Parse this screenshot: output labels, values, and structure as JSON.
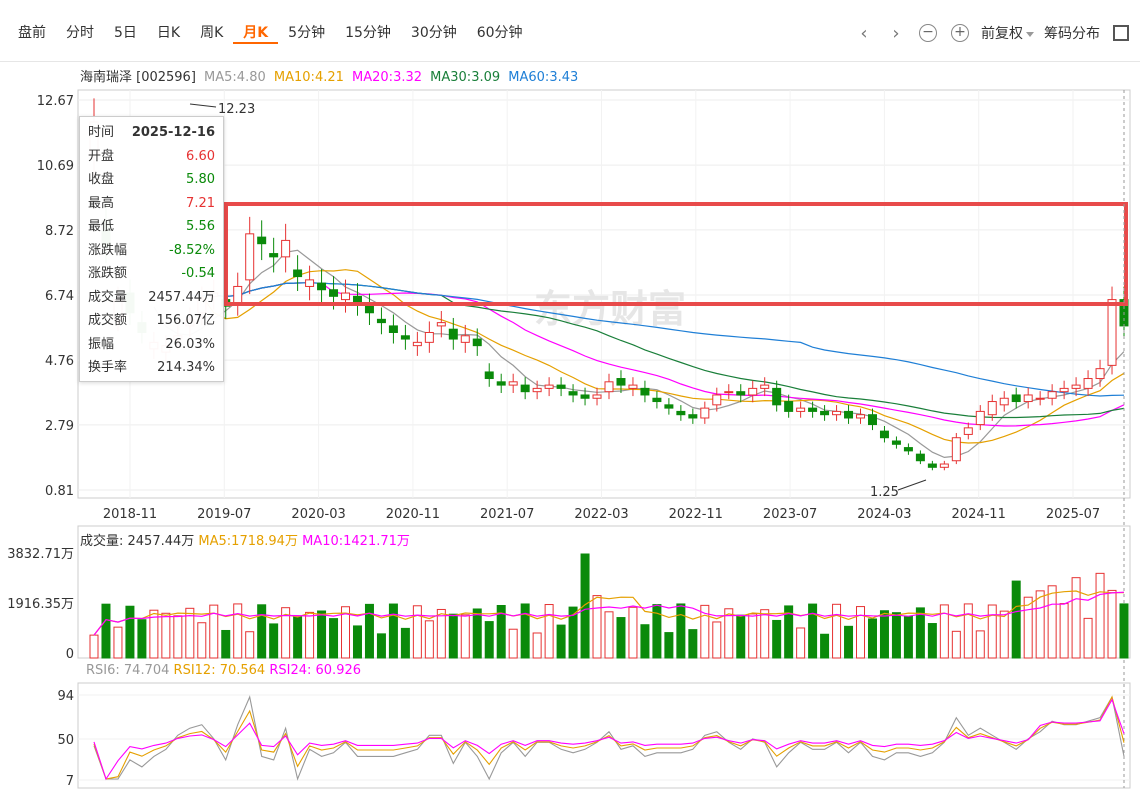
{
  "toolbar": {
    "tabs": [
      {
        "label": "盘前"
      },
      {
        "label": "分时"
      },
      {
        "label": "5日"
      },
      {
        "label": "日K"
      },
      {
        "label": "周K"
      },
      {
        "label": "月K"
      },
      {
        "label": "5分钟"
      },
      {
        "label": "15分钟"
      },
      {
        "label": "30分钟"
      },
      {
        "label": "60分钟"
      }
    ],
    "active_tab": "月K",
    "icons": [
      "chevron-left-icon",
      "chevron-right-icon",
      "zoom-out-icon",
      "zoom-in-icon",
      "fullscreen-icon"
    ],
    "adjust_label": "前复权",
    "chip_label": "筹码分布"
  },
  "stock": {
    "title": "海南瑞泽 [002596]",
    "ma": [
      {
        "label": "MA5:4.80",
        "color": "#999999"
      },
      {
        "label": "MA10:4.21",
        "color": "#e5a000"
      },
      {
        "label": "MA20:3.32",
        "color": "#ff00ff"
      },
      {
        "label": "MA30:3.09",
        "color": "#1a7f3a"
      },
      {
        "label": "MA60:3.43",
        "color": "#1f7fd6"
      }
    ]
  },
  "tooltip": {
    "rows": [
      {
        "k": "时间",
        "v": "2025-12-16",
        "cls": "bold"
      },
      {
        "k": "开盘",
        "v": "6.60",
        "cls": "red"
      },
      {
        "k": "收盘",
        "v": "5.80",
        "cls": "green"
      },
      {
        "k": "最高",
        "v": "7.21",
        "cls": "red"
      },
      {
        "k": "最低",
        "v": "5.56",
        "cls": "green"
      },
      {
        "k": "涨跌幅",
        "v": "-8.52%",
        "cls": "green"
      },
      {
        "k": "涨跌额",
        "v": "-0.54",
        "cls": "green"
      },
      {
        "k": "成交量",
        "v": "2457.44万",
        "cls": ""
      },
      {
        "k": "成交额",
        "v": "156.07亿",
        "cls": ""
      },
      {
        "k": "振幅",
        "v": "26.03%",
        "cls": ""
      },
      {
        "k": "换手率",
        "v": "214.34%",
        "cls": ""
      }
    ]
  },
  "volume_legend": {
    "main": "成交量: 2457.44万",
    "ma5": "MA5:1718.94万",
    "ma10": "MA10:1421.71万"
  },
  "rsi_legend": {
    "rsi6": "RSI6: 74.704",
    "rsi12": "RSI12: 70.564",
    "rsi24": "RSI24: 60.926"
  },
  "watermark": "东方财富",
  "colors": {
    "up": "#e63232",
    "down": "#0a8a0a",
    "highlight_box": "#e84a4a"
  },
  "chart_data": {
    "type": "candlestick",
    "price_axis": {
      "ticks": [
        "12.67",
        "10.69",
        "8.72",
        "6.74",
        "4.76",
        "2.79",
        "0.81"
      ],
      "range": [
        0.81,
        12.67
      ]
    },
    "x_labels": [
      "2018-11",
      "2019-07",
      "2020-03",
      "2020-11",
      "2021-07",
      "2022-03",
      "2022-11",
      "2023-07",
      "2024-03",
      "2024-11",
      "2025-07"
    ],
    "annotations": [
      {
        "text": "12.23",
        "value": 12.23
      },
      {
        "text": "1.25",
        "value": 1.25
      }
    ],
    "volume_axis": {
      "ticks": [
        "3832.71万",
        "1916.35万",
        "0"
      ]
    },
    "rsi_axis": {
      "ticks": [
        "94",
        "50",
        "7"
      ]
    },
    "last_candle": {
      "date": "2025-12-16",
      "open": 6.6,
      "close": 5.8,
      "high": 7.21,
      "low": 5.56
    }
  }
}
